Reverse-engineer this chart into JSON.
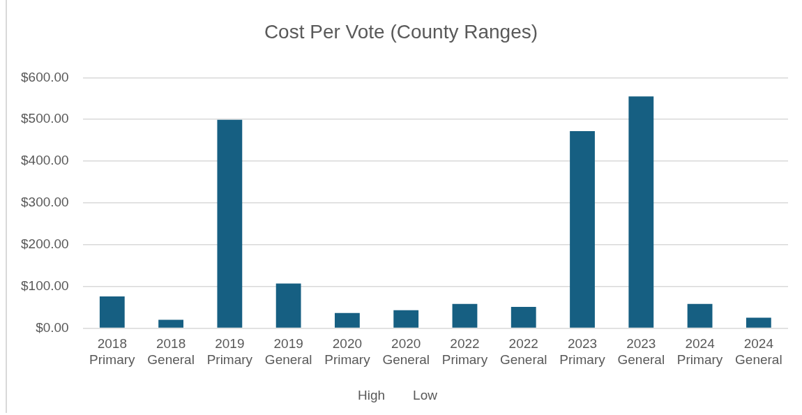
{
  "chart_data": {
    "type": "bar",
    "title": "Cost Per Vote (County Ranges)",
    "categories": [
      "2018 Primary",
      "2018 General",
      "2019 Primary",
      "2019 General",
      "2020 Primary",
      "2020 General",
      "2022 Primary",
      "2022 General",
      "2023 Primary",
      "2023 General",
      "2024 Primary",
      "2024 General"
    ],
    "values": [
      76,
      20,
      499,
      107,
      36,
      43,
      58,
      51,
      472,
      555,
      58,
      25
    ],
    "color": "#165f82",
    "ylim": [
      0,
      600
    ],
    "yticks": [
      {
        "value": 0,
        "label": "$0.00"
      },
      {
        "value": 100,
        "label": "$100.00"
      },
      {
        "value": 200,
        "label": "$200.00"
      },
      {
        "value": 300,
        "label": "$300.00"
      },
      {
        "value": 400,
        "label": "$400.00"
      },
      {
        "value": 500,
        "label": "$500.00"
      },
      {
        "value": 600,
        "label": "$600.00"
      }
    ],
    "grid": "y",
    "annotations": [
      "High",
      "Low"
    ]
  }
}
